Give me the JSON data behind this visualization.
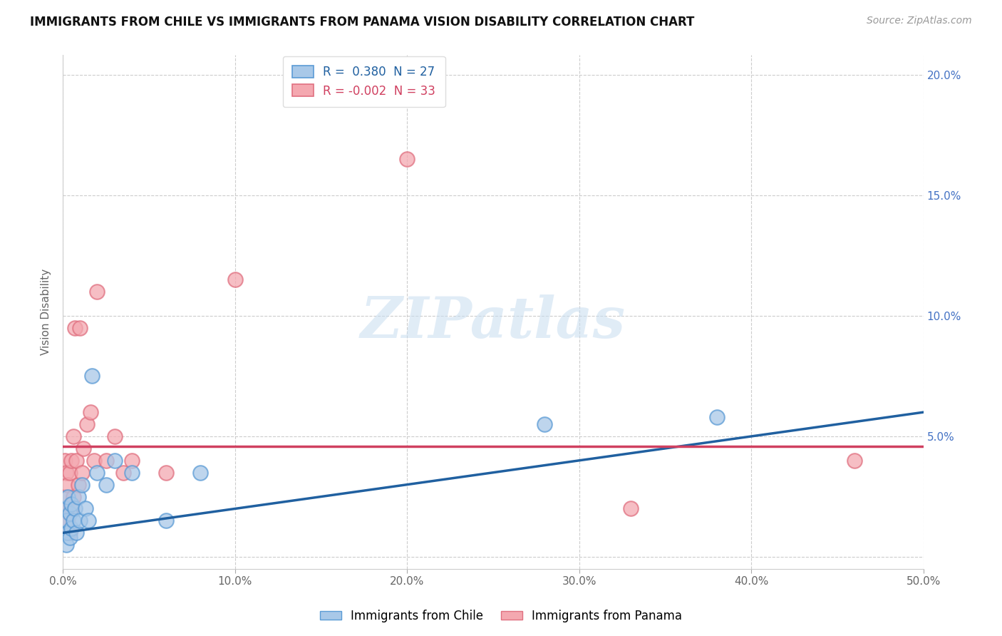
{
  "title": "IMMIGRANTS FROM CHILE VS IMMIGRANTS FROM PANAMA VISION DISABILITY CORRELATION CHART",
  "source": "Source: ZipAtlas.com",
  "ylabel": "Vision Disability",
  "xlim": [
    0.0,
    0.5
  ],
  "ylim": [
    -0.005,
    0.208
  ],
  "xticks": [
    0.0,
    0.1,
    0.2,
    0.3,
    0.4,
    0.5
  ],
  "xtick_labels": [
    "0.0%",
    "10.0%",
    "20.0%",
    "30.0%",
    "40.0%",
    "50.0%"
  ],
  "yticks": [
    0.0,
    0.05,
    0.1,
    0.15,
    0.2
  ],
  "ytick_labels_right": [
    "",
    "5.0%",
    "10.0%",
    "15.0%",
    "20.0%"
  ],
  "chile_color": "#a8c8e8",
  "panama_color": "#f4a8b0",
  "chile_edge": "#5b9bd5",
  "panama_edge": "#e07080",
  "regression_chile_color": "#2060a0",
  "regression_panama_color": "#d04060",
  "R_chile": 0.38,
  "N_chile": 27,
  "R_panama": -0.002,
  "N_panama": 33,
  "watermark": "ZIPatlas",
  "legend_label_chile": "Immigrants from Chile",
  "legend_label_panama": "Immigrants from Panama",
  "chile_regression_x0": 0.0,
  "chile_regression_y0": 0.01,
  "chile_regression_x1": 0.5,
  "chile_regression_y1": 0.06,
  "panama_regression_x0": 0.0,
  "panama_regression_y0": 0.046,
  "panama_regression_x1": 0.5,
  "panama_regression_y1": 0.046,
  "chile_x": [
    0.001,
    0.001,
    0.002,
    0.002,
    0.003,
    0.003,
    0.004,
    0.004,
    0.005,
    0.005,
    0.006,
    0.007,
    0.008,
    0.009,
    0.01,
    0.011,
    0.013,
    0.015,
    0.017,
    0.02,
    0.025,
    0.03,
    0.04,
    0.06,
    0.08,
    0.28,
    0.38
  ],
  "chile_y": [
    0.01,
    0.02,
    0.005,
    0.015,
    0.01,
    0.025,
    0.008,
    0.018,
    0.012,
    0.022,
    0.015,
    0.02,
    0.01,
    0.025,
    0.015,
    0.03,
    0.02,
    0.015,
    0.075,
    0.035,
    0.03,
    0.04,
    0.035,
    0.015,
    0.035,
    0.055,
    0.058
  ],
  "panama_x": [
    0.001,
    0.001,
    0.001,
    0.002,
    0.002,
    0.002,
    0.003,
    0.003,
    0.004,
    0.004,
    0.005,
    0.005,
    0.006,
    0.006,
    0.007,
    0.008,
    0.009,
    0.01,
    0.011,
    0.012,
    0.014,
    0.016,
    0.018,
    0.02,
    0.025,
    0.03,
    0.035,
    0.04,
    0.06,
    0.1,
    0.2,
    0.33,
    0.46
  ],
  "panama_y": [
    0.015,
    0.025,
    0.04,
    0.01,
    0.02,
    0.035,
    0.015,
    0.03,
    0.01,
    0.035,
    0.02,
    0.04,
    0.025,
    0.05,
    0.095,
    0.04,
    0.03,
    0.095,
    0.035,
    0.045,
    0.055,
    0.06,
    0.04,
    0.11,
    0.04,
    0.05,
    0.035,
    0.04,
    0.035,
    0.115,
    0.165,
    0.02,
    0.04
  ]
}
